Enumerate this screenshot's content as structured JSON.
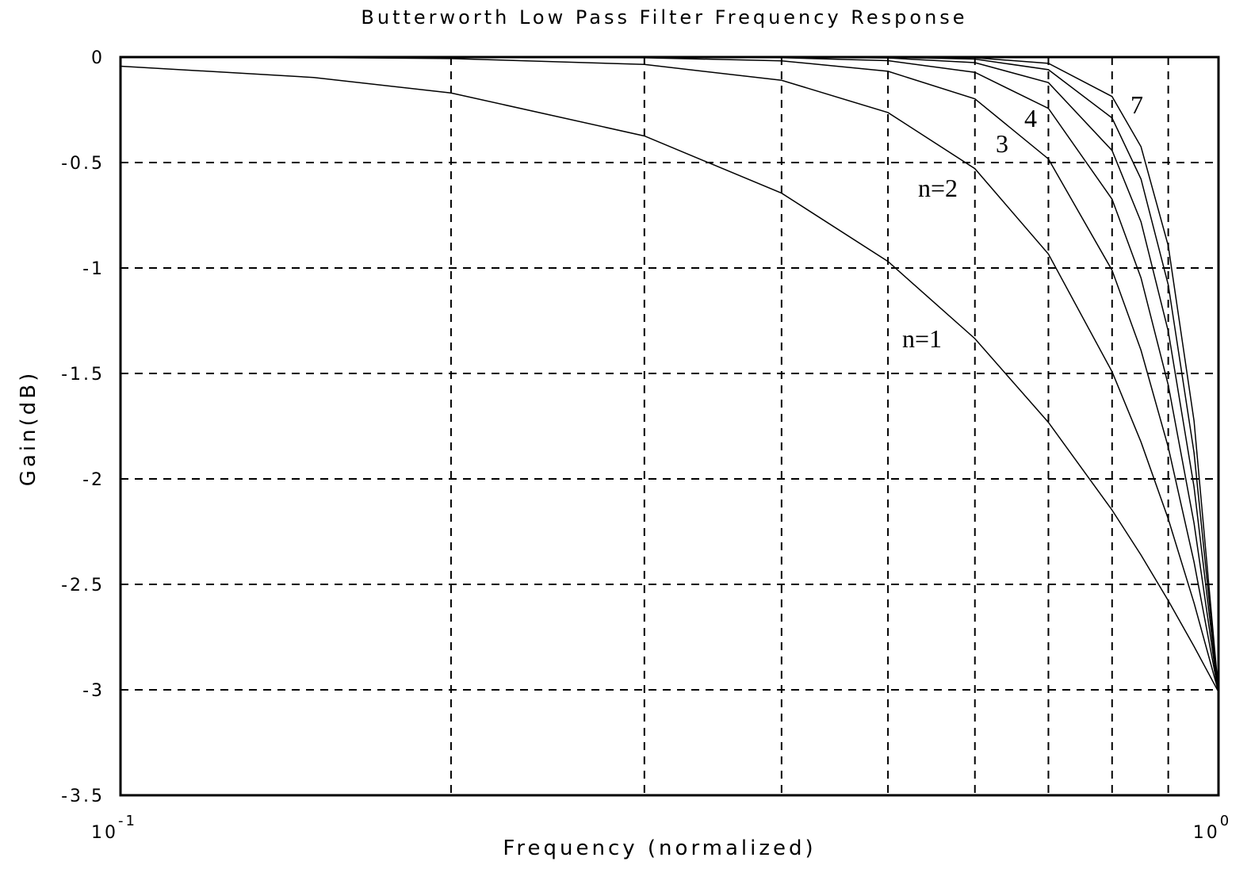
{
  "chart_data": {
    "type": "line",
    "title": "Butterworth Low Pass Filter Frequency Response",
    "xlabel": "Frequency (normalized)",
    "ylabel": "Gain(dB)",
    "xscale": "log",
    "xlim": [
      0.1,
      1
    ],
    "ylim": [
      -3.5,
      0
    ],
    "xticks": [
      {
        "value": 0.1,
        "label": "10",
        "exponent": "-1"
      },
      {
        "value": 1,
        "label": "10",
        "exponent": "0"
      }
    ],
    "xminor": [
      0.2,
      0.3,
      0.4,
      0.5,
      0.6,
      0.7,
      0.8,
      0.9
    ],
    "yticks": [
      0,
      -0.5,
      -1,
      -1.5,
      -2,
      -2.5,
      -3,
      -3.5
    ],
    "grid": true,
    "x": [
      0.1,
      0.15,
      0.2,
      0.3,
      0.4,
      0.5,
      0.6,
      0.7,
      0.8,
      0.85,
      0.9,
      0.95,
      1
    ],
    "series": [
      {
        "color": "#000000",
        "values": [
          -0.0432,
          -0.0966,
          -0.17,
          -0.374,
          -0.645,
          -0.969,
          -1.335,
          -1.732,
          -2.148,
          -2.361,
          -2.577,
          -2.794,
          -3.01
        ]
      },
      {
        "color": "#000000",
        "values": [
          -0.0004,
          -0.0022,
          -0.0069,
          -0.035,
          -0.11,
          -0.263,
          -0.529,
          -0.934,
          -1.492,
          -1.825,
          -2.19,
          -2.588,
          -3.01
        ]
      },
      {
        "color": "#000000",
        "values": [
          0,
          0,
          -0.0003,
          -0.0032,
          -0.0177,
          -0.0673,
          -0.198,
          -0.483,
          -1.011,
          -1.39,
          -1.85,
          -2.394,
          -3.01
        ]
      },
      {
        "color": "#000000",
        "values": [
          0,
          0,
          0,
          -0.0003,
          -0.0028,
          -0.0169,
          -0.0723,
          -0.2434,
          -0.674,
          -1.047,
          -1.555,
          -2.21,
          -3.01
        ]
      },
      {
        "color": "#000000",
        "values": [
          0,
          0,
          0,
          0,
          -0.0005,
          -0.0042,
          -0.0262,
          -0.121,
          -0.443,
          -0.781,
          -1.3,
          -2.038,
          -3.01
        ]
      },
      {
        "color": "#000000",
        "values": [
          0,
          0,
          0,
          0,
          0,
          -0.0011,
          -0.0094,
          -0.0597,
          -0.289,
          -0.578,
          -1.08,
          -1.876,
          -3.01
        ]
      },
      {
        "color": "#000000",
        "values": [
          0,
          0,
          0,
          0,
          0,
          -0.0003,
          -0.0034,
          -0.0294,
          -0.187,
          -0.425,
          -0.895,
          -1.725,
          -3.01
        ]
      }
    ],
    "annotations": [
      "n=1",
      "n=2",
      "3",
      "4",
      "7"
    ]
  }
}
